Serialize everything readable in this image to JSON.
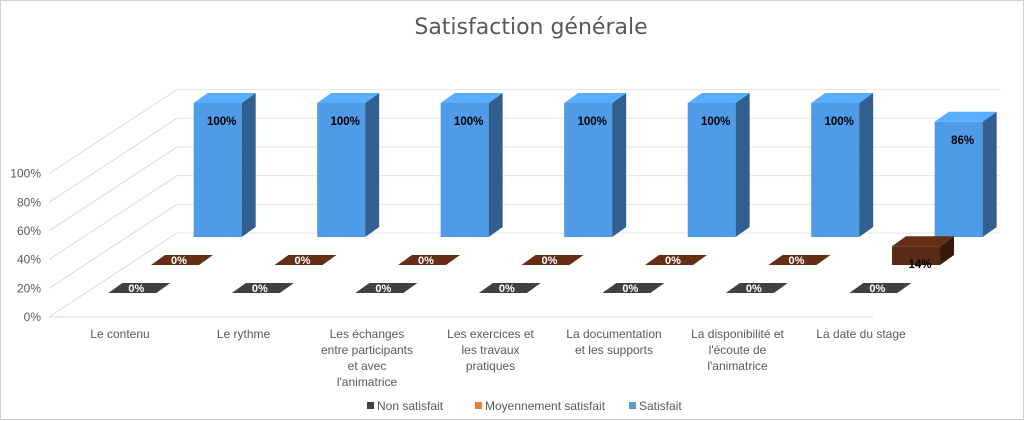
{
  "chart_data": {
    "type": "bar",
    "title": "Satisfaction générale",
    "categories": [
      "Le contenu",
      "Le rythme",
      "Les échanges entre participants et avec l'animatrice",
      "Les exercices et les travaux pratiques",
      "La documentation et les supports",
      "La disponibilité et l'écoute de l'animatrice",
      "La date du stage"
    ],
    "category_lines": [
      [
        "Le contenu"
      ],
      [
        "Le rythme"
      ],
      [
        "Les échanges",
        "entre participants",
        "et avec",
        "l'animatrice"
      ],
      [
        "Les exercices et",
        "les travaux",
        "pratiques"
      ],
      [
        "La documentation",
        "et les supports"
      ],
      [
        "La disponibilité et",
        "l'écoute de",
        "l'animatrice"
      ],
      [
        "La date du stage"
      ]
    ],
    "series": [
      {
        "name": "Non satisfait",
        "values": [
          0,
          0,
          0,
          0,
          0,
          0,
          0
        ],
        "labels": [
          "0%",
          "0%",
          "0%",
          "0%",
          "0%",
          "0%",
          "0%"
        ],
        "color": "#404040",
        "bar_color": "#3a3a3a"
      },
      {
        "name": "Moyennement satisfait",
        "values": [
          0,
          0,
          0,
          0,
          0,
          0,
          14
        ],
        "labels": [
          "0%",
          "0%",
          "0%",
          "0%",
          "0%",
          "0%",
          "14%"
        ],
        "color": "#ED7D31",
        "bar_color": "#5a2a14"
      },
      {
        "name": "Satisfait",
        "values": [
          100,
          100,
          100,
          100,
          100,
          100,
          86
        ],
        "labels": [
          "100%",
          "100%",
          "100%",
          "100%",
          "100%",
          "100%",
          "86%"
        ],
        "color": "#5B9BD5",
        "bar_color": "#4f9be8"
      }
    ],
    "y_ticks": [
      "0%",
      "20%",
      "40%",
      "60%",
      "80%",
      "100%"
    ],
    "ylim": [
      0,
      100
    ],
    "grid": true,
    "legend_position": "bottom",
    "chart_style": "3d-column"
  }
}
